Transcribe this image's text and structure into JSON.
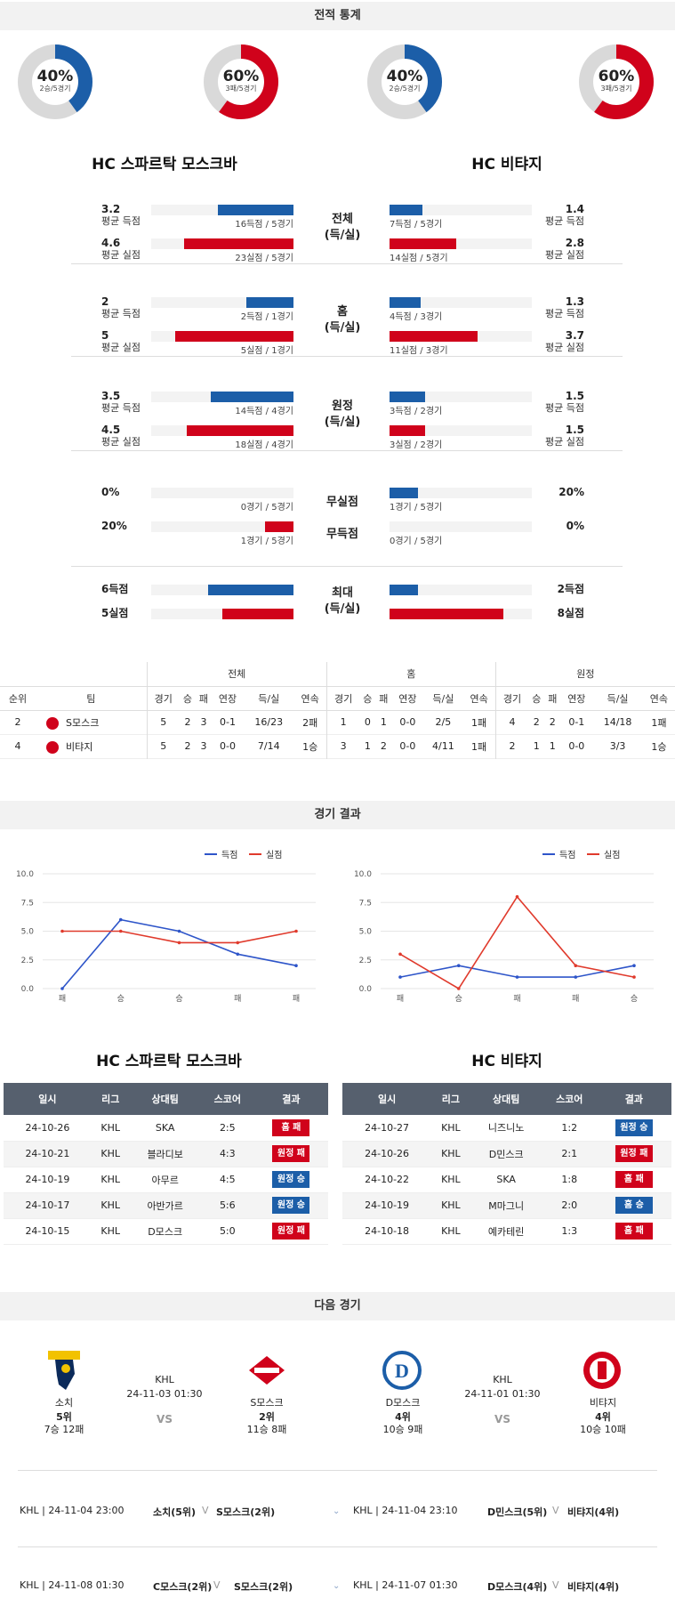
{
  "stats_header": "전적 통계",
  "donuts": [
    {
      "pct": "40%",
      "sub": "2승/5경기",
      "fraction": 0.4,
      "color": "#1c5ea8"
    },
    {
      "pct": "60%",
      "sub": "3패/5경기",
      "fraction": 0.6,
      "color": "#d0021b"
    },
    {
      "pct": "40%",
      "sub": "2승/5경기",
      "fraction": 0.4,
      "color": "#1c5ea8"
    },
    {
      "pct": "60%",
      "sub": "3패/5경기",
      "fraction": 0.6,
      "color": "#d0021b"
    }
  ],
  "team_left": "HC 스파르탁 모스크바",
  "team_right": "HC 비탸지",
  "groups": [
    {
      "mid": "전체\n(득/실)",
      "rows": [
        {
          "lv": "3.2",
          "ll": "평균 득점",
          "lc": "16득점 / 5경기",
          "lf": 0.53,
          "lcol": "blue",
          "rv": "1.4",
          "rl": "평균 득점",
          "rc": "7득점 / 5경기",
          "rf": 0.23,
          "rcol": "blue"
        },
        {
          "lv": "4.6",
          "ll": "평균 실점",
          "lc": "23실점 / 5경기",
          "lf": 0.77,
          "lcol": "red",
          "rv": "2.8",
          "rl": "평균 실점",
          "rc": "14실점 / 5경기",
          "rf": 0.47,
          "rcol": "red"
        }
      ]
    },
    {
      "mid": "홈\n(득/실)",
      "rows": [
        {
          "lv": "2",
          "ll": "평균 득점",
          "lc": "2득점 / 1경기",
          "lf": 0.33,
          "lcol": "blue",
          "rv": "1.3",
          "rl": "평균 득점",
          "rc": "4득점 / 3경기",
          "rf": 0.22,
          "rcol": "blue"
        },
        {
          "lv": "5",
          "ll": "평균 실점",
          "lc": "5실점 / 1경기",
          "lf": 0.83,
          "lcol": "red",
          "rv": "3.7",
          "rl": "평균 실점",
          "rc": "11실점 / 3경기",
          "rf": 0.62,
          "rcol": "red"
        }
      ]
    },
    {
      "mid": "원정\n(득/실)",
      "rows": [
        {
          "lv": "3.5",
          "ll": "평균 득점",
          "lc": "14득점 / 4경기",
          "lf": 0.58,
          "lcol": "blue",
          "rv": "1.5",
          "rl": "평균 득점",
          "rc": "3득점 / 2경기",
          "rf": 0.25,
          "rcol": "blue"
        },
        {
          "lv": "4.5",
          "ll": "평균 실점",
          "lc": "18실점 / 4경기",
          "lf": 0.75,
          "lcol": "red",
          "rv": "1.5",
          "rl": "평균 실점",
          "rc": "3실점 / 2경기",
          "rf": 0.25,
          "rcol": "red"
        }
      ]
    }
  ],
  "clean": {
    "mid1": "무실점",
    "mid2": "무득점",
    "rows": [
      {
        "lv": "0%",
        "lc": "0경기 / 5경기",
        "lf": 0.0,
        "lcol": "blue",
        "rv": "20%",
        "rc": "1경기 / 5경기",
        "rf": 0.2,
        "rcol": "blue"
      },
      {
        "lv": "20%",
        "lc": "1경기 / 5경기",
        "lf": 0.2,
        "lcol": "red",
        "rv": "0%",
        "rc": "0경기 / 5경기",
        "rf": 0.0,
        "rcol": "red"
      }
    ]
  },
  "max": {
    "mid": "최대\n(득/실)",
    "rows": [
      {
        "lv": "6득점",
        "lf": 0.6,
        "lcol": "blue",
        "rv": "2득점",
        "rf": 0.2,
        "rcol": "blue"
      },
      {
        "lv": "5실점",
        "lf": 0.5,
        "lcol": "red",
        "rv": "8실점",
        "rf": 0.8,
        "rcol": "red"
      }
    ]
  },
  "standings": {
    "groups": [
      "전체",
      "홈",
      "원정"
    ],
    "cols": [
      "순위",
      "팀",
      "경기",
      "승",
      "패",
      "연장",
      "득/실",
      "연속",
      "경기",
      "승",
      "패",
      "연장",
      "득/실",
      "연속",
      "경기",
      "승",
      "패",
      "연장",
      "득/실",
      "연속"
    ],
    "rows": [
      [
        "2",
        "S모스크",
        "5",
        "2",
        "3",
        "0-1",
        "16/23",
        "2패",
        "1",
        "0",
        "1",
        "0-0",
        "2/5",
        "1패",
        "4",
        "2",
        "2",
        "0-1",
        "14/18",
        "1패"
      ],
      [
        "4",
        "비탸지",
        "5",
        "2",
        "3",
        "0-0",
        "7/14",
        "1승",
        "3",
        "1",
        "2",
        "0-0",
        "4/11",
        "1패",
        "2",
        "1",
        "1",
        "0-0",
        "3/3",
        "1승"
      ]
    ]
  },
  "results_header": "경기 결과",
  "legend": {
    "scored": "득점",
    "conceded": "실점"
  },
  "chart_data": [
    {
      "type": "line",
      "categories": [
        "패",
        "승",
        "승",
        "패",
        "패"
      ],
      "series": [
        {
          "name": "득점",
          "values": [
            0,
            6,
            5,
            3,
            2
          ],
          "color": "#2e55c9"
        },
        {
          "name": "실점",
          "values": [
            5,
            5,
            4,
            4,
            5
          ],
          "color": "#e03a2c"
        }
      ],
      "ylim": [
        0,
        10
      ],
      "yticks": [
        "0.0",
        "2.5",
        "5.0",
        "7.5",
        "10.0"
      ]
    },
    {
      "type": "line",
      "categories": [
        "패",
        "승",
        "패",
        "패",
        "승"
      ],
      "series": [
        {
          "name": "득점",
          "values": [
            1,
            2,
            1,
            1,
            2
          ],
          "color": "#2e55c9"
        },
        {
          "name": "실점",
          "values": [
            3,
            0,
            8,
            2,
            1
          ],
          "color": "#e03a2c"
        }
      ],
      "ylim": [
        0,
        10
      ],
      "yticks": [
        "0.0",
        "2.5",
        "5.0",
        "7.5",
        "10.0"
      ]
    }
  ],
  "games_headers": [
    "일시",
    "리그",
    "상대팀",
    "스코어",
    "결과"
  ],
  "games_left": [
    [
      "24-10-26",
      "KHL",
      "SKA",
      "2:5",
      "홈 패",
      "red"
    ],
    [
      "24-10-21",
      "KHL",
      "블라디보",
      "4:3",
      "원정 패",
      "red"
    ],
    [
      "24-10-19",
      "KHL",
      "아무르",
      "4:5",
      "원정 승",
      "blue"
    ],
    [
      "24-10-17",
      "KHL",
      "아반가르",
      "5:6",
      "원정 승",
      "blue"
    ],
    [
      "24-10-15",
      "KHL",
      "D모스크",
      "5:0",
      "원정 패",
      "red"
    ]
  ],
  "games_right": [
    [
      "24-10-27",
      "KHL",
      "니즈니노",
      "1:2",
      "원정 승",
      "blue"
    ],
    [
      "24-10-26",
      "KHL",
      "D민스크",
      "2:1",
      "원정 패",
      "red"
    ],
    [
      "24-10-22",
      "KHL",
      "SKA",
      "1:8",
      "홈 패",
      "red"
    ],
    [
      "24-10-19",
      "KHL",
      "M마그니",
      "2:0",
      "홈 승",
      "blue"
    ],
    [
      "24-10-18",
      "KHL",
      "예카테린",
      "1:3",
      "홈 패",
      "red"
    ]
  ],
  "next_header": "다음 경기",
  "next_left": {
    "home": "소치",
    "home_rank": "5위",
    "home_rec": "7승 12패",
    "league": "KHL",
    "time": "24-11-03 01:30",
    "vs": "VS",
    "away": "S모스크",
    "away_rank": "2위",
    "away_rec": "11승 8패"
  },
  "next_right": {
    "home": "D모스크",
    "home_rank": "4위",
    "home_rec": "10승 9패",
    "league": "KHL",
    "time": "24-11-01 01:30",
    "vs": "VS",
    "away": "비탸지",
    "away_rank": "4위",
    "away_rec": "10승 10패"
  },
  "upcoming": [
    {
      "l_info": "KHL | 24-11-04 23:00",
      "l_home": "소치(5위)",
      "l_v": "V",
      "l_away": "S모스크(2위)",
      "r_info": "KHL | 24-11-04 23:10",
      "r_home": "D민스크(5위)",
      "r_v": "V",
      "r_away": "비탸지(4위)"
    },
    {
      "l_info": "KHL | 24-11-08 01:30",
      "l_home": "C모스크(2위)",
      "l_v": "V",
      "l_away": "S모스크(2위)",
      "r_info": "KHL | 24-11-07 01:30",
      "r_home": "D모스크(4위)",
      "r_v": "V",
      "r_away": "비탸지(4위)"
    }
  ]
}
